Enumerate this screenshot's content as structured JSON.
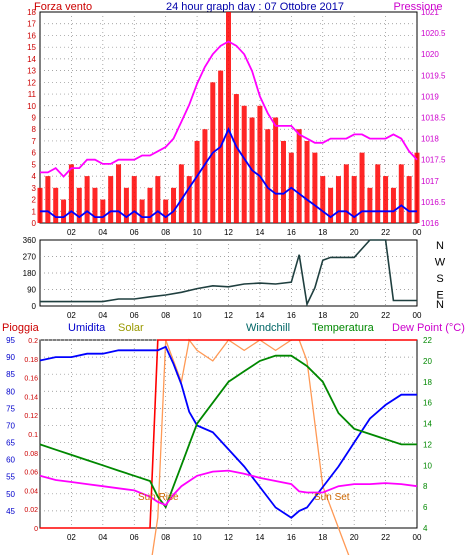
{
  "colors": {
    "wind": "#ff0000",
    "wind_avg": "#0000ff",
    "pressure": "#ff00ff",
    "direction": "#1f3f3f",
    "rain": "#ff0000",
    "humidity": "#0000ff",
    "solar": "#ff9955",
    "windchill": "#006666",
    "temperature": "#008800",
    "dewpoint": "#ff00ff",
    "grid": "#888888",
    "axis_left": "#cc0000",
    "axis_humidity": "#0000cc",
    "axis_pressure": "#cc00cc",
    "axis_temp": "#008800"
  },
  "header": {
    "left_label": "Forza vento",
    "title": "24 hour graph day : 07 Ottobre 2017",
    "right_label": "Pressione"
  },
  "x_ticks": [
    "02",
    "04",
    "06",
    "08",
    "10",
    "12",
    "14",
    "16",
    "18",
    "20",
    "22",
    "00"
  ],
  "chart_data": [
    {
      "type": "bar",
      "x": [
        0,
        0.5,
        1,
        1.5,
        2,
        2.5,
        3,
        3.5,
        4,
        4.5,
        5,
        5.5,
        6,
        6.5,
        7,
        7.5,
        8,
        8.5,
        9,
        9.5,
        10,
        10.5,
        11,
        11.5,
        12,
        12.5,
        13,
        13.5,
        14,
        14.5,
        15,
        15.5,
        16,
        16.5,
        17,
        17.5,
        18,
        18.5,
        19,
        19.5,
        20,
        20.5,
        21,
        21.5,
        22,
        22.5,
        23,
        23.5,
        24
      ],
      "series": [
        {
          "name": "Forza vento",
          "values": [
            3,
            4,
            3,
            2,
            5,
            3,
            4,
            3,
            2,
            4,
            5,
            3,
            4,
            2,
            3,
            4,
            2,
            3,
            5,
            4,
            7,
            8,
            12,
            13,
            18,
            11,
            10,
            9,
            10,
            8,
            9,
            7,
            6,
            8,
            7,
            6,
            4,
            3,
            4,
            5,
            4,
            6,
            3,
            5,
            4,
            3,
            5,
            4,
            6
          ]
        },
        {
          "name": "",
          "values": [
            1,
            1,
            0.5,
            0.5,
            1,
            0.5,
            1,
            0.5,
            0.5,
            1,
            1,
            0.5,
            1,
            0.5,
            0.5,
            1,
            0.5,
            1,
            2,
            3,
            4,
            5,
            6,
            6.5,
            8,
            6.5,
            5.5,
            4.5,
            4,
            3,
            2.5,
            2.5,
            3,
            2.5,
            2,
            1.5,
            1,
            0.5,
            1,
            1,
            0.5,
            1,
            1,
            1,
            1,
            1,
            1.5,
            1,
            1
          ]
        },
        {
          "name": "Pressione",
          "values": [
            1017.2,
            1017.2,
            1017.3,
            1017.1,
            1017.3,
            1017.3,
            1017.5,
            1017.5,
            1017.4,
            1017.4,
            1017.5,
            1017.5,
            1017.5,
            1017.6,
            1017.6,
            1017.7,
            1017.8,
            1018.0,
            1018.4,
            1018.8,
            1019.3,
            1019.7,
            1020.0,
            1020.2,
            1020.3,
            1020.2,
            1020.0,
            1019.6,
            1019.0,
            1018.6,
            1018.3,
            1018.3,
            1018.3,
            1018.1,
            1018.0,
            1017.9,
            1017.9,
            1018.0,
            1018.0,
            1018.0,
            1018.1,
            1018.1,
            1018.0,
            1018.0,
            1018.0,
            1018.1,
            1018.0,
            1017.7,
            1017.5
          ]
        }
      ],
      "ylim": [
        0,
        18
      ],
      "y2lim": [
        1016,
        1021
      ]
    },
    {
      "type": "line",
      "x": [
        0,
        1,
        2,
        3,
        4,
        5,
        6,
        7,
        8,
        9,
        10,
        11,
        12,
        13,
        14,
        15,
        16,
        16.5,
        17,
        17.5,
        18,
        18.5,
        19,
        20,
        21,
        22,
        22.5,
        23,
        24
      ],
      "series": [
        {
          "name": "",
          "values": [
            24,
            24,
            24,
            24,
            24,
            38,
            38,
            50,
            60,
            75,
            95,
            110,
            105,
            120,
            125,
            120,
            130,
            280,
            10,
            100,
            250,
            265,
            265,
            265,
            360,
            360,
            30,
            30,
            30
          ]
        }
      ],
      "ylim": [
        0,
        360
      ],
      "yticks": [
        0,
        90,
        180,
        270,
        360
      ],
      "direction_labels": [
        "N",
        "W",
        "S",
        "E",
        "N"
      ]
    },
    {
      "type": "line",
      "x": [
        0,
        1,
        2,
        3,
        4,
        5,
        6,
        7,
        7.5,
        8,
        8.5,
        9,
        9.5,
        10,
        11,
        12,
        13,
        14,
        15,
        16,
        16.5,
        17,
        18,
        19,
        20,
        21,
        22,
        23,
        24
      ],
      "series": [
        {
          "name": "Pioggia",
          "values": [
            0,
            0,
            0,
            0,
            0,
            0,
            0,
            0,
            0.2,
            0.2,
            0.2,
            0.2,
            0.2,
            0.2,
            0.2,
            0.2,
            0.2,
            0.2,
            0.2,
            0.2,
            0.2,
            0.2,
            0.2,
            0.2,
            0.2,
            0.2,
            0.2,
            0.2,
            0.2
          ]
        },
        {
          "name": "Umidita",
          "values": [
            89,
            90,
            90,
            91,
            91,
            92,
            92,
            92,
            92,
            93,
            88,
            82,
            74,
            70,
            68,
            63,
            58,
            52,
            46,
            43,
            45,
            46,
            52,
            58,
            65,
            72,
            76,
            79,
            79
          ]
        },
        {
          "name": "Solar",
          "values": [
            0,
            0,
            0,
            0,
            0,
            0,
            0,
            0,
            5,
            22,
            20,
            18,
            22,
            21,
            20,
            22,
            21,
            22,
            21,
            22,
            22,
            20,
            8,
            4,
            0,
            0,
            0,
            0,
            0
          ]
        },
        {
          "name": "Windchill",
          "values": [
            12,
            11.5,
            11,
            10.5,
            10,
            9.5,
            9,
            8.5,
            7,
            6,
            8,
            10,
            12,
            14,
            16,
            18,
            19,
            20,
            20.5,
            20.5,
            20,
            19.5,
            18,
            15,
            13.5,
            13,
            12.5,
            12,
            12
          ]
        },
        {
          "name": "Temperatura",
          "values": [
            12,
            11.5,
            11,
            10.5,
            10,
            9.5,
            9,
            8.5,
            7,
            6,
            8,
            10,
            12,
            14,
            16,
            18,
            19,
            20,
            20.5,
            20.5,
            20,
            19.5,
            18,
            15,
            13.5,
            13,
            12.5,
            12,
            12
          ]
        },
        {
          "name": "Dew Point (°C)",
          "values": [
            9,
            8.6,
            8.4,
            8.2,
            8,
            7.8,
            7.6,
            7,
            6.5,
            6.2,
            7.2,
            8,
            8.5,
            9,
            9.4,
            9.5,
            9.2,
            8.8,
            8.5,
            8.2,
            7.5,
            7.4,
            7.4,
            8,
            8.2,
            8.2,
            8.3,
            8.2,
            8
          ]
        }
      ],
      "ylim_left_rain": [
        0,
        0.2
      ],
      "ylim_humidity": [
        40,
        95
      ],
      "ylim_temp": [
        4,
        22
      ],
      "annotations": [
        "Sun Rise",
        "Sun Set"
      ]
    }
  ],
  "panel1": {
    "left_ticks": [
      "0",
      "1",
      "2",
      "3",
      "4",
      "5",
      "6",
      "7",
      "8",
      "9",
      "10",
      "11",
      "12",
      "13",
      "14",
      "15",
      "16",
      "17",
      "18"
    ],
    "right_ticks": [
      "1016",
      "1016.5",
      "1017",
      "1017.5",
      "1018",
      "1018.5",
      "1019",
      "1019.5",
      "1020",
      "1020.5",
      "1021"
    ]
  },
  "panel2": {
    "left_ticks": [
      "0",
      "90",
      "180",
      "270",
      "360"
    ],
    "direction_labels": [
      "N",
      "W",
      "S",
      "E",
      "N"
    ]
  },
  "panel3": {
    "legend": {
      "rain": "Pioggia",
      "humidity": "Umidita",
      "solar": "Solar",
      "windchill": "Windchill",
      "temperature": "Temperatura",
      "dewpoint": "Dew Point (°C)"
    },
    "rain_ticks": [
      "0",
      "0.02",
      "0.04",
      "0.06",
      "0.08",
      "0.1",
      "0.12",
      "0.14",
      "0.16",
      "0.18",
      "0.2"
    ],
    "humidity_ticks": [
      "45",
      "50",
      "55",
      "60",
      "65",
      "70",
      "75",
      "80",
      "85",
      "90",
      "95"
    ],
    "temp_ticks": [
      "4",
      "6",
      "8",
      "10",
      "12",
      "14",
      "16",
      "18",
      "20",
      "22"
    ],
    "sunrise": "Sun Rise",
    "sunset": "Sun Set"
  }
}
